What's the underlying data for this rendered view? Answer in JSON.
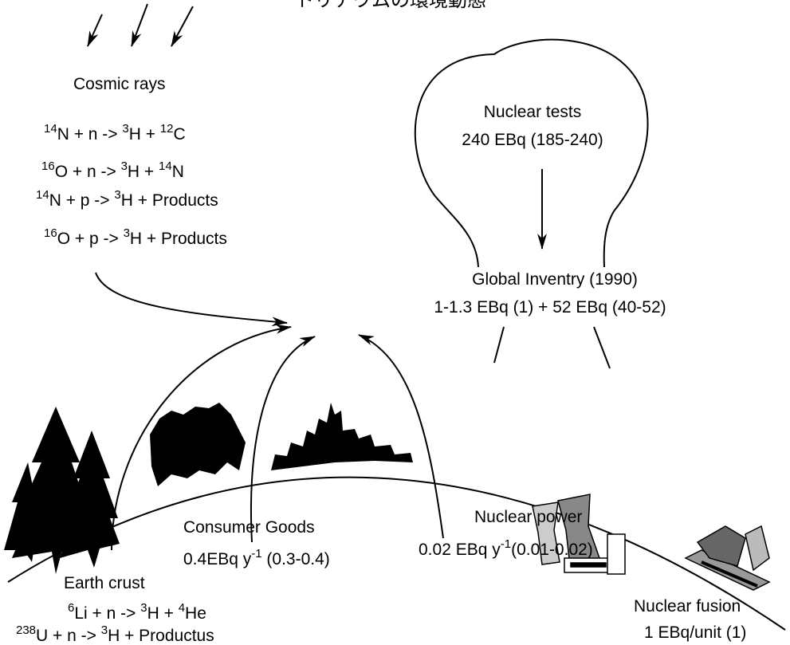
{
  "title": "トリチウムの環境動態",
  "cosmic_rays": {
    "label": "Cosmic rays",
    "reactions": [
      [
        {
          "sup": "14"
        },
        "N + n -> ",
        {
          "sup": "3"
        },
        "H + ",
        {
          "sup": "12"
        },
        "C"
      ],
      [
        {
          "sup": "16"
        },
        "O + n -> ",
        {
          "sup": "3"
        },
        "H + ",
        {
          "sup": "14"
        },
        "N"
      ],
      [
        {
          "sup": "14"
        },
        "N + p -> ",
        {
          "sup": "3"
        },
        "H + Products"
      ],
      [
        {
          "sup": "16"
        },
        "O + p -> ",
        {
          "sup": "3"
        },
        "H + Products"
      ]
    ]
  },
  "nuclear_tests": {
    "label": "Nuclear tests",
    "amount": "240 EBq (185-240)"
  },
  "global_inventory": {
    "label": "Global Inventry (1990)",
    "amount": "1-1.3 EBq (1) + 52 EBq (40-52)"
  },
  "consumer_goods": {
    "label": "Consumer Goods",
    "amount": [
      "0.4EBq y",
      {
        "sup": "-1"
      },
      " (0.3-0.4)"
    ]
  },
  "nuclear_power": {
    "label": "Nuclear power",
    "amount": [
      "0.02 EBq y",
      {
        "sup": "-1"
      },
      "(0.01-0.02)"
    ]
  },
  "earth_crust": {
    "label": "Earth crust",
    "reactions": [
      [
        {
          "sup": "6"
        },
        "Li + n -> ",
        {
          "sup": "3"
        },
        "H + ",
        {
          "sup": "4"
        },
        "He"
      ],
      [
        {
          "sup": "238"
        },
        "U + n -> ",
        {
          "sup": "3"
        },
        "H + Productus"
      ]
    ]
  },
  "nuclear_fusion": {
    "label": "Nuclear fusion",
    "amount": "1 EBq/unit (1)"
  }
}
